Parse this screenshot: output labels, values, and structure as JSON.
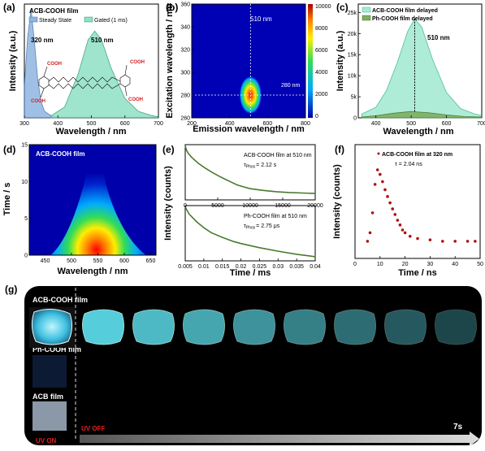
{
  "colors": {
    "steady": "#6fa0d8",
    "gated": "#5fcfa8",
    "acb_delayed": "#7fe0c0",
    "ph_delayed": "#4f8a3a",
    "decay_green": "#4a7a2e",
    "fluor_red": "#b01010",
    "uv_label": "#e02020",
    "glow": "#5ad8e6"
  },
  "panel_a": {
    "tag": "(a)",
    "film_label": "ACB-COOH film",
    "legend": [
      "Steady State",
      "Gated (1 ms)"
    ],
    "peak1": "320 nm",
    "peak2": "510 nm",
    "cooh": "COOH",
    "xlabel": "Wavelength / nm",
    "ylabel": "Intensity (a.u.)"
  },
  "panel_b": {
    "tag": "(b)",
    "line_v": "510 nm",
    "line_h": "280 nm",
    "xlabel": "Emission wavelength / nm",
    "ylabel": "Excitation wavelength / nm",
    "cb_ticks": [
      "10000",
      "8000",
      "6000",
      "4000",
      "2000",
      "0"
    ]
  },
  "panel_c": {
    "tag": "(c)",
    "legend": [
      "ACB-COOH film delayed",
      "Ph-COOH film delayed"
    ],
    "peak": "510 nm",
    "xlabel": "Wavelength / nm",
    "ylabel": "Intensity (a.u.)"
  },
  "panel_d": {
    "tag": "(d)",
    "film_label": "ACB-COOH film",
    "xlabel": "Wavelength / nm",
    "ylabel": "Time / s"
  },
  "panel_e": {
    "tag": "(e)",
    "top_label": "ACB-COOH film at 510 nm",
    "top_tau": "τ",
    "top_tau_sub": "Phos",
    "top_tau_val": "= 2.12 s",
    "bottom_label": "Ph-COOH film at 510 nm",
    "bottom_tau": "τ",
    "bottom_tau_sub": "Phos",
    "bottom_tau_val": "= 2.75 μs",
    "xlabel": "Time / ms",
    "ylabel": "Intensity (counts)"
  },
  "panel_f": {
    "tag": "(f)",
    "label": "ACB-COOH film at 320 nm",
    "tau": "τ = 2.04 ns",
    "xlabel": "Time / ns",
    "ylabel": "Intensity (counts)"
  },
  "panel_g": {
    "tag": "(g)",
    "rows": [
      "ACB-COOH film",
      "Ph-COOH film",
      "ACB film"
    ],
    "uv_on": "UV ON",
    "uv_off": "UV OFF",
    "time": "7s"
  },
  "chart_data": [
    {
      "type": "area",
      "panel": "a",
      "xlim": [
        300,
        700
      ],
      "ylim": [
        0,
        1.05
      ],
      "xticks": [
        300,
        400,
        500,
        600,
        700
      ],
      "series": [
        {
          "name": "Steady State",
          "x": [
            300,
            310,
            320,
            330,
            340,
            350,
            360,
            380,
            400
          ],
          "y": [
            0.3,
            0.75,
            1.0,
            0.7,
            0.35,
            0.15,
            0.06,
            0.02,
            0.0
          ]
        },
        {
          "name": "Gated (1 ms)",
          "x": [
            380,
            420,
            460,
            490,
            510,
            530,
            560,
            600,
            640,
            680,
            700
          ],
          "y": [
            0.02,
            0.1,
            0.4,
            0.72,
            0.8,
            0.72,
            0.45,
            0.18,
            0.06,
            0.02,
            0.01
          ]
        }
      ]
    },
    {
      "type": "heatmap",
      "panel": "b",
      "xlim": [
        200,
        800
      ],
      "ylim": [
        260,
        360
      ],
      "xticks": [
        200,
        400,
        600,
        800
      ],
      "yticks": [
        260,
        280,
        300,
        320,
        340,
        360
      ],
      "peak": {
        "emission": 510,
        "excitation": 280
      },
      "colorbar": [
        0,
        10000
      ]
    },
    {
      "type": "area",
      "panel": "c",
      "xlim": [
        350,
        700
      ],
      "ylim": [
        0,
        27000
      ],
      "xticks": [
        400,
        500,
        600,
        700
      ],
      "yticks": [
        0,
        5000,
        10000,
        15000,
        20000,
        25000
      ],
      "yticklabels": [
        "0",
        "5k",
        "10k",
        "15k",
        "20k",
        "25k"
      ],
      "series": [
        {
          "name": "ACB-COOH film delayed",
          "x": [
            360,
            400,
            430,
            460,
            490,
            510,
            530,
            560,
            600,
            640,
            680,
            700
          ],
          "y": [
            900,
            2500,
            6500,
            13000,
            20500,
            23500,
            21500,
            14000,
            6000,
            2200,
            900,
            600
          ]
        },
        {
          "name": "Ph-COOH film delayed",
          "x": [
            360,
            400,
            450,
            500,
            550,
            600,
            650,
            700
          ],
          "y": [
            200,
            500,
            1100,
            1500,
            1200,
            700,
            300,
            200
          ]
        }
      ]
    },
    {
      "type": "heatmap",
      "panel": "d",
      "xlim": [
        420,
        660
      ],
      "ylim": [
        0,
        15
      ],
      "xticks": [
        450,
        500,
        550,
        600,
        650
      ],
      "yticks": [
        0,
        5,
        10,
        15
      ]
    },
    {
      "type": "line",
      "panel": "e-top",
      "xlim": [
        0,
        20000
      ],
      "ylim": [
        0.3,
        10000
      ],
      "yscale": "log",
      "xticks": [
        0,
        5000,
        10000,
        15000,
        20000
      ],
      "series": [
        {
          "name": "ACB-COOH film at 510 nm",
          "x": [
            0,
            200,
            500,
            1000,
            2000,
            3000,
            4000,
            5000,
            6000,
            7000,
            8000,
            9000,
            10000,
            12000,
            14000,
            16000,
            18000,
            20000
          ],
          "y": [
            8000,
            3500,
            1800,
            900,
            300,
            130,
            60,
            30,
            16,
            9,
            5,
            3.5,
            2.5,
            1.8,
            1.4,
            1.2,
            1.1,
            1
          ]
        }
      ]
    },
    {
      "type": "line",
      "panel": "e-bottom",
      "xlim": [
        0.005,
        0.04
      ],
      "ylim": [
        1,
        10000
      ],
      "yscale": "log",
      "xticks": [
        0.005,
        0.01,
        0.015,
        0.02,
        0.025,
        0.03,
        0.035,
        0.04
      ],
      "series": [
        {
          "name": "Ph-COOH film at 510 nm",
          "x": [
            0.005,
            0.006,
            0.008,
            0.01,
            0.012,
            0.015,
            0.018,
            0.02,
            0.025,
            0.03,
            0.035,
            0.04
          ],
          "y": [
            8000,
            2500,
            700,
            250,
            110,
            50,
            25,
            18,
            9,
            5,
            3,
            2
          ]
        }
      ]
    },
    {
      "type": "scatter",
      "panel": "f",
      "xlim": [
        0,
        50
      ],
      "ylim": [
        1,
        10000
      ],
      "yscale": "log",
      "xticks": [
        0,
        10,
        20,
        30,
        40,
        50
      ],
      "series": [
        {
          "name": "ACB-COOH film at 320 nm",
          "x": [
            5,
            6,
            7,
            8,
            9,
            10,
            11,
            12,
            13,
            14,
            15,
            16,
            17,
            18,
            19,
            20,
            22,
            25,
            30,
            35,
            40,
            45,
            48
          ],
          "y": [
            4,
            8,
            40,
            400,
            1300,
            900,
            500,
            260,
            150,
            90,
            55,
            35,
            22,
            15,
            10,
            8,
            6,
            5,
            4.5,
            4,
            4,
            4,
            4
          ]
        }
      ]
    }
  ]
}
